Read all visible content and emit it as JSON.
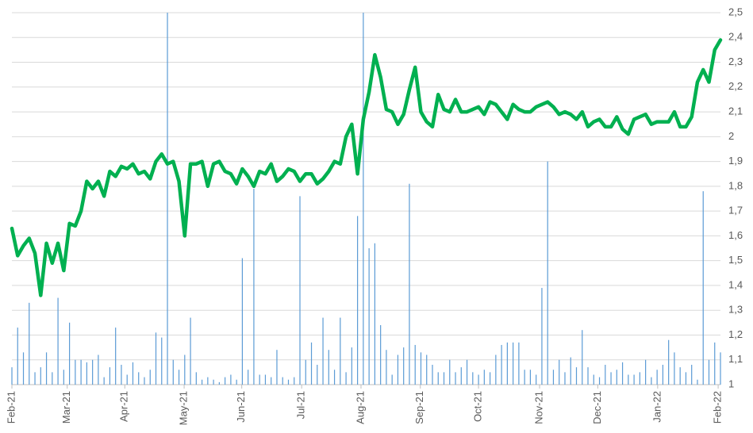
{
  "chart_data": {
    "type": "line_bar",
    "series": [
      {
        "type": "line",
        "color": "#00b050",
        "values": [
          1.63,
          1.52,
          1.56,
          1.59,
          1.53,
          1.36,
          1.57,
          1.49,
          1.57,
          1.46,
          1.65,
          1.64,
          1.7,
          1.82,
          1.79,
          1.82,
          1.76,
          1.86,
          1.84,
          1.88,
          1.87,
          1.89,
          1.85,
          1.86,
          1.83,
          1.9,
          1.93,
          1.89,
          1.9,
          1.82,
          1.6,
          1.89,
          1.89,
          1.9,
          1.8,
          1.89,
          1.9,
          1.86,
          1.85,
          1.81,
          1.87,
          1.84,
          1.8,
          1.86,
          1.85,
          1.89,
          1.82,
          1.84,
          1.87,
          1.86,
          1.82,
          1.85,
          1.85,
          1.81,
          1.83,
          1.86,
          1.9,
          1.89,
          2.0,
          2.05,
          1.85,
          2.07,
          2.18,
          2.33,
          2.24,
          2.11,
          2.1,
          2.05,
          2.09,
          2.19,
          2.28,
          2.1,
          2.06,
          2.04,
          2.17,
          2.11,
          2.1,
          2.15,
          2.1,
          2.1,
          2.11,
          2.12,
          2.09,
          2.14,
          2.13,
          2.1,
          2.07,
          2.13,
          2.11,
          2.1,
          2.1,
          2.12,
          2.13,
          2.14,
          2.12,
          2.09,
          2.1,
          2.09,
          2.07,
          2.1,
          2.04,
          2.06,
          2.07,
          2.04,
          2.04,
          2.08,
          2.03,
          2.01,
          2.07,
          2.08,
          2.09,
          2.05,
          2.06,
          2.06,
          2.06,
          2.1,
          2.04,
          2.04,
          2.08,
          2.22,
          2.27,
          2.22,
          2.35,
          2.39
        ]
      },
      {
        "type": "bar",
        "color": "#5b9bd5",
        "values": [
          1.07,
          1.23,
          1.13,
          1.33,
          1.05,
          1.07,
          1.13,
          1.05,
          1.35,
          1.06,
          1.25,
          1.1,
          1.1,
          1.09,
          1.1,
          1.12,
          1.03,
          1.07,
          1.23,
          1.08,
          1.04,
          1.09,
          1.05,
          1.03,
          1.06,
          1.21,
          1.19,
          2.5,
          1.1,
          1.06,
          1.12,
          1.27,
          1.05,
          1.02,
          1.03,
          1.02,
          1.01,
          1.03,
          1.04,
          1.02,
          1.51,
          1.06,
          1.79,
          1.04,
          1.04,
          1.03,
          1.14,
          1.03,
          1.02,
          1.03,
          1.76,
          1.1,
          1.17,
          1.08,
          1.27,
          1.14,
          1.06,
          1.27,
          1.05,
          1.15,
          1.68,
          2.5,
          1.55,
          1.57,
          1.24,
          1.14,
          1.04,
          1.12,
          1.15,
          1.81,
          1.16,
          1.13,
          1.12,
          1.08,
          1.05,
          1.05,
          1.1,
          1.05,
          1.07,
          1.1,
          1.05,
          1.04,
          1.06,
          1.05,
          1.12,
          1.16,
          1.17,
          1.17,
          1.17,
          1.06,
          1.06,
          1.04,
          1.39,
          1.9,
          1.06,
          1.1,
          1.05,
          1.11,
          1.07,
          1.22,
          1.07,
          1.04,
          1.03,
          1.08,
          1.05,
          1.06,
          1.09,
          1.04,
          1.04,
          1.05,
          1.1,
          1.03,
          1.06,
          1.08,
          1.18,
          1.13,
          1.07,
          1.05,
          1.08,
          1.02,
          1.78,
          1.1,
          1.17,
          1.13
        ]
      }
    ],
    "xlim": [
      0,
      123
    ],
    "xticks": [
      {
        "value": 0,
        "label": "Feb-21"
      },
      {
        "value": 9.6,
        "label": "Mar-21"
      },
      {
        "value": 19.6,
        "label": "Apr-21"
      },
      {
        "value": 29.9,
        "label": "May-21"
      },
      {
        "value": 39.9,
        "label": "Jun-21"
      },
      {
        "value": 50.3,
        "label": "Jul-21"
      },
      {
        "value": 60.6,
        "label": "Aug-21"
      },
      {
        "value": 70.9,
        "label": "Sep-21"
      },
      {
        "value": 81.0,
        "label": "Oct-21"
      },
      {
        "value": 91.6,
        "label": "Nov-21"
      },
      {
        "value": 101.7,
        "label": "Dec-21"
      },
      {
        "value": 112.1,
        "label": "Jan-22"
      },
      {
        "value": 122.6,
        "label": "Feb-22"
      }
    ],
    "ylim": [
      1,
      2.5
    ],
    "yticks": [
      1,
      {
        "value": 1.1,
        "label": "1,1"
      },
      {
        "value": 1.2,
        "label": "1,2"
      },
      {
        "value": 1.3,
        "label": "1,3"
      },
      {
        "value": 1.4,
        "label": "1,4"
      },
      {
        "value": 1.5,
        "label": "1,5"
      },
      {
        "value": 1.6,
        "label": "1,6"
      },
      {
        "value": 1.7,
        "label": "1,7"
      },
      {
        "value": 1.8,
        "label": "1,8"
      },
      {
        "value": 1.9,
        "label": "1,9"
      },
      2,
      {
        "value": 2.1,
        "label": "2,1"
      },
      {
        "value": 2.2,
        "label": "2,2"
      },
      {
        "value": 2.3,
        "label": "2,3"
      },
      {
        "value": 2.4,
        "label": "2,4"
      },
      {
        "value": 2.5,
        "label": "2,5"
      }
    ],
    "grid": true,
    "y_axis_side": "right"
  }
}
